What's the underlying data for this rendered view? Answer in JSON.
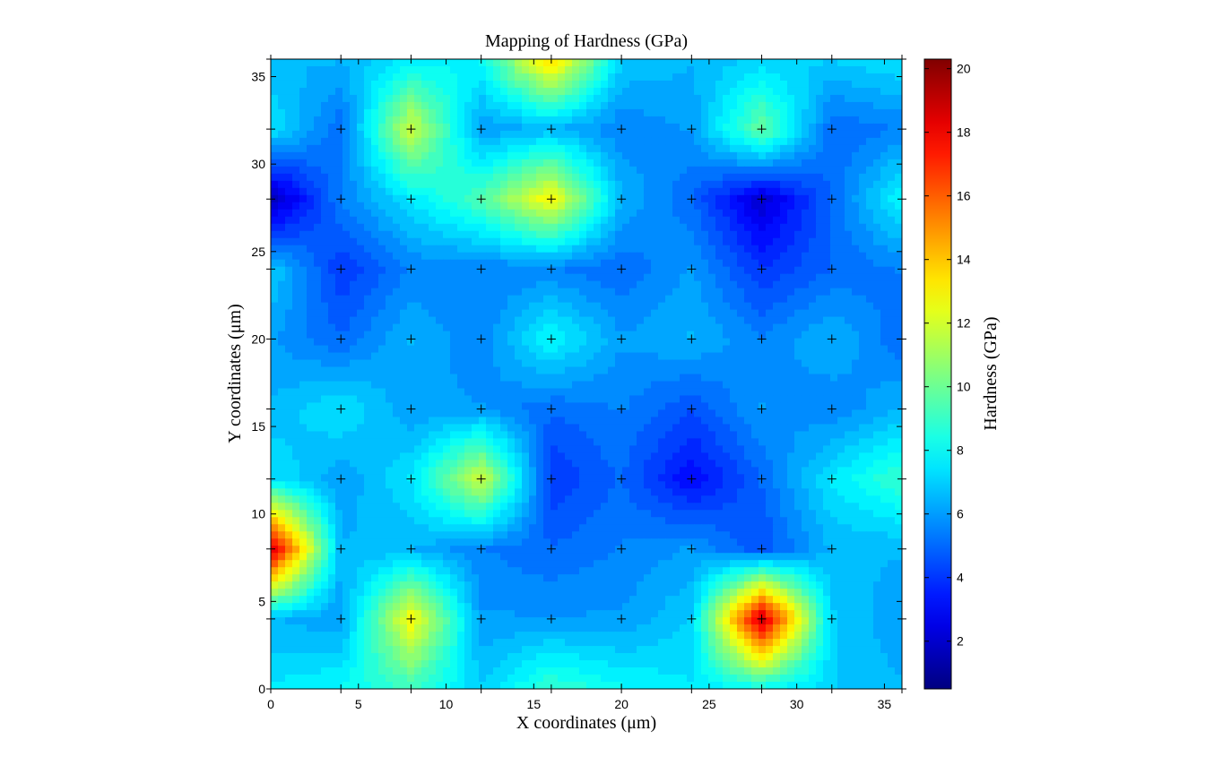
{
  "chart_data": {
    "type": "heatmap",
    "style": "filled-contour",
    "title": "Mapping of Hardness (GPa)",
    "xlabel": "X coordinates (μm)",
    "ylabel": "Y coordinates (μm)",
    "colorbar_label": "Hardness (GPa)",
    "colormap": "jet",
    "grid": false,
    "marker": "+",
    "xlim": [
      0,
      36
    ],
    "ylim": [
      0,
      36
    ],
    "clim": [
      0.5,
      20.3
    ],
    "x_ticks": [
      0,
      5,
      10,
      15,
      20,
      25,
      30,
      35
    ],
    "y_ticks": [
      0,
      5,
      10,
      15,
      20,
      25,
      30,
      35
    ],
    "colorbar_ticks": [
      2,
      4,
      6,
      8,
      10,
      12,
      14,
      16,
      18,
      20
    ],
    "x": [
      0,
      4,
      8,
      12,
      16,
      20,
      24,
      28,
      32,
      36
    ],
    "y": [
      0,
      4,
      8,
      12,
      16,
      20,
      24,
      28,
      32,
      36
    ],
    "z": [
      [
        7.5,
        8.0,
        9.0,
        7.0,
        9.0,
        8.0,
        7.5,
        8.0,
        7.0,
        6.5
      ],
      [
        6.5,
        6.0,
        13.0,
        6.0,
        6.0,
        6.0,
        7.0,
        19.0,
        7.0,
        6.0
      ],
      [
        19.0,
        6.5,
        6.5,
        5.5,
        5.0,
        5.5,
        6.0,
        4.5,
        6.5,
        6.5
      ],
      [
        7.5,
        6.0,
        7.5,
        12.0,
        4.0,
        5.0,
        3.0,
        5.0,
        7.5,
        9.0
      ],
      [
        6.5,
        7.5,
        6.0,
        6.0,
        5.0,
        5.5,
        4.5,
        6.0,
        5.5,
        6.5
      ],
      [
        6.0,
        5.0,
        6.5,
        5.5,
        8.0,
        6.0,
        6.5,
        5.5,
        6.5,
        5.0
      ],
      [
        7.0,
        4.0,
        5.5,
        5.5,
        5.5,
        5.0,
        6.0,
        4.0,
        5.0,
        5.5
      ],
      [
        1.5,
        5.5,
        7.5,
        9.5,
        13.0,
        6.5,
        5.0,
        2.0,
        5.0,
        8.0
      ],
      [
        7.5,
        5.0,
        12.0,
        6.0,
        6.5,
        5.5,
        6.0,
        10.0,
        5.0,
        5.5
      ],
      [
        6.5,
        6.5,
        7.5,
        8.0,
        14.0,
        7.0,
        6.5,
        7.0,
        7.0,
        7.5
      ]
    ]
  }
}
